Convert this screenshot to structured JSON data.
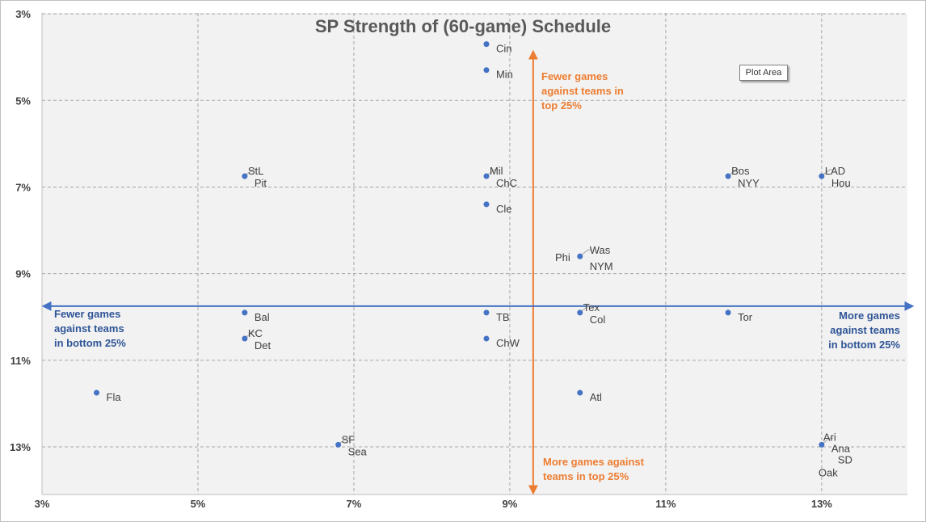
{
  "chart_data": {
    "type": "scatter",
    "title": "SP Strength of (60-game) Schedule",
    "xlabel": "",
    "ylabel": "",
    "xlim": [
      3,
      14.1
    ],
    "ylim": [
      14.1,
      2.98
    ],
    "y_reversed": true,
    "x_ticks": [
      {
        "value": 3,
        "label": "3%"
      },
      {
        "value": 5,
        "label": "5%"
      },
      {
        "value": 7,
        "label": "7%"
      },
      {
        "value": 9,
        "label": "9%"
      },
      {
        "value": 11,
        "label": "11%"
      },
      {
        "value": 13,
        "label": "13%"
      }
    ],
    "y_ticks": [
      {
        "value": 3,
        "label": "3%"
      },
      {
        "value": 5,
        "label": "5%"
      },
      {
        "value": 7,
        "label": "7%"
      },
      {
        "value": 9,
        "label": "9%"
      },
      {
        "value": 11,
        "label": "11%"
      },
      {
        "value": 13,
        "label": "13%"
      }
    ],
    "grid": true,
    "marker_color": "#4472c4",
    "points": [
      {
        "x": 8.7,
        "y": 3.7,
        "labels": [
          "Cin"
        ]
      },
      {
        "x": 8.7,
        "y": 4.3,
        "labels": [
          "Min"
        ]
      },
      {
        "x": 5.6,
        "y": 6.75,
        "labels": [
          "StL",
          "Pit"
        ]
      },
      {
        "x": 8.7,
        "y": 6.75,
        "labels": [
          "Mil",
          "ChC"
        ]
      },
      {
        "x": 11.8,
        "y": 6.75,
        "labels": [
          "Bos",
          "NYY"
        ]
      },
      {
        "x": 13.0,
        "y": 6.75,
        "labels": [
          "LAD",
          "Hou"
        ]
      },
      {
        "x": 8.7,
        "y": 7.4,
        "labels": [
          "Cle"
        ]
      },
      {
        "x": 9.9,
        "y": 8.6,
        "labels": [
          "Phi",
          "Was",
          "NYM"
        ]
      },
      {
        "x": 5.6,
        "y": 9.9,
        "labels": [
          "Bal"
        ]
      },
      {
        "x": 8.7,
        "y": 9.9,
        "labels": [
          "TB"
        ]
      },
      {
        "x": 9.9,
        "y": 9.9,
        "labels": [
          "Tex",
          "Col"
        ]
      },
      {
        "x": 11.8,
        "y": 9.9,
        "labels": [
          "Tor"
        ]
      },
      {
        "x": 5.6,
        "y": 10.5,
        "labels": [
          "KC",
          "Det"
        ]
      },
      {
        "x": 8.7,
        "y": 10.5,
        "labels": [
          "ChW"
        ]
      },
      {
        "x": 3.7,
        "y": 11.75,
        "labels": [
          "Fla"
        ]
      },
      {
        "x": 9.9,
        "y": 11.75,
        "labels": [
          "Atl"
        ]
      },
      {
        "x": 6.8,
        "y": 12.95,
        "labels": [
          "SF",
          "Sea"
        ]
      },
      {
        "x": 13.0,
        "y": 12.95,
        "labels": [
          "Ari",
          "Ana",
          "SD",
          "Oak"
        ]
      }
    ],
    "reference_lines": [
      {
        "orientation": "vertical",
        "x": 9.3,
        "color": "#ed7d31"
      },
      {
        "orientation": "horizontal",
        "y": 9.75,
        "color": "#4472c4"
      }
    ],
    "annotations": {
      "top": {
        "lines": [
          "Fewer games",
          "against teams in",
          "top 25%"
        ],
        "color": "#ed7d31"
      },
      "bottom": {
        "lines": [
          "More games against",
          "teams in top 25%"
        ],
        "color": "#ed7d31"
      },
      "left": {
        "lines": [
          "Fewer games",
          "against teams",
          "in bottom 25%"
        ],
        "color": "#2f5597"
      },
      "right": {
        "lines": [
          "More games",
          "against teams",
          "in bottom 25%"
        ],
        "color": "#2f5597"
      }
    }
  },
  "tooltip": {
    "text": "Plot Area"
  }
}
